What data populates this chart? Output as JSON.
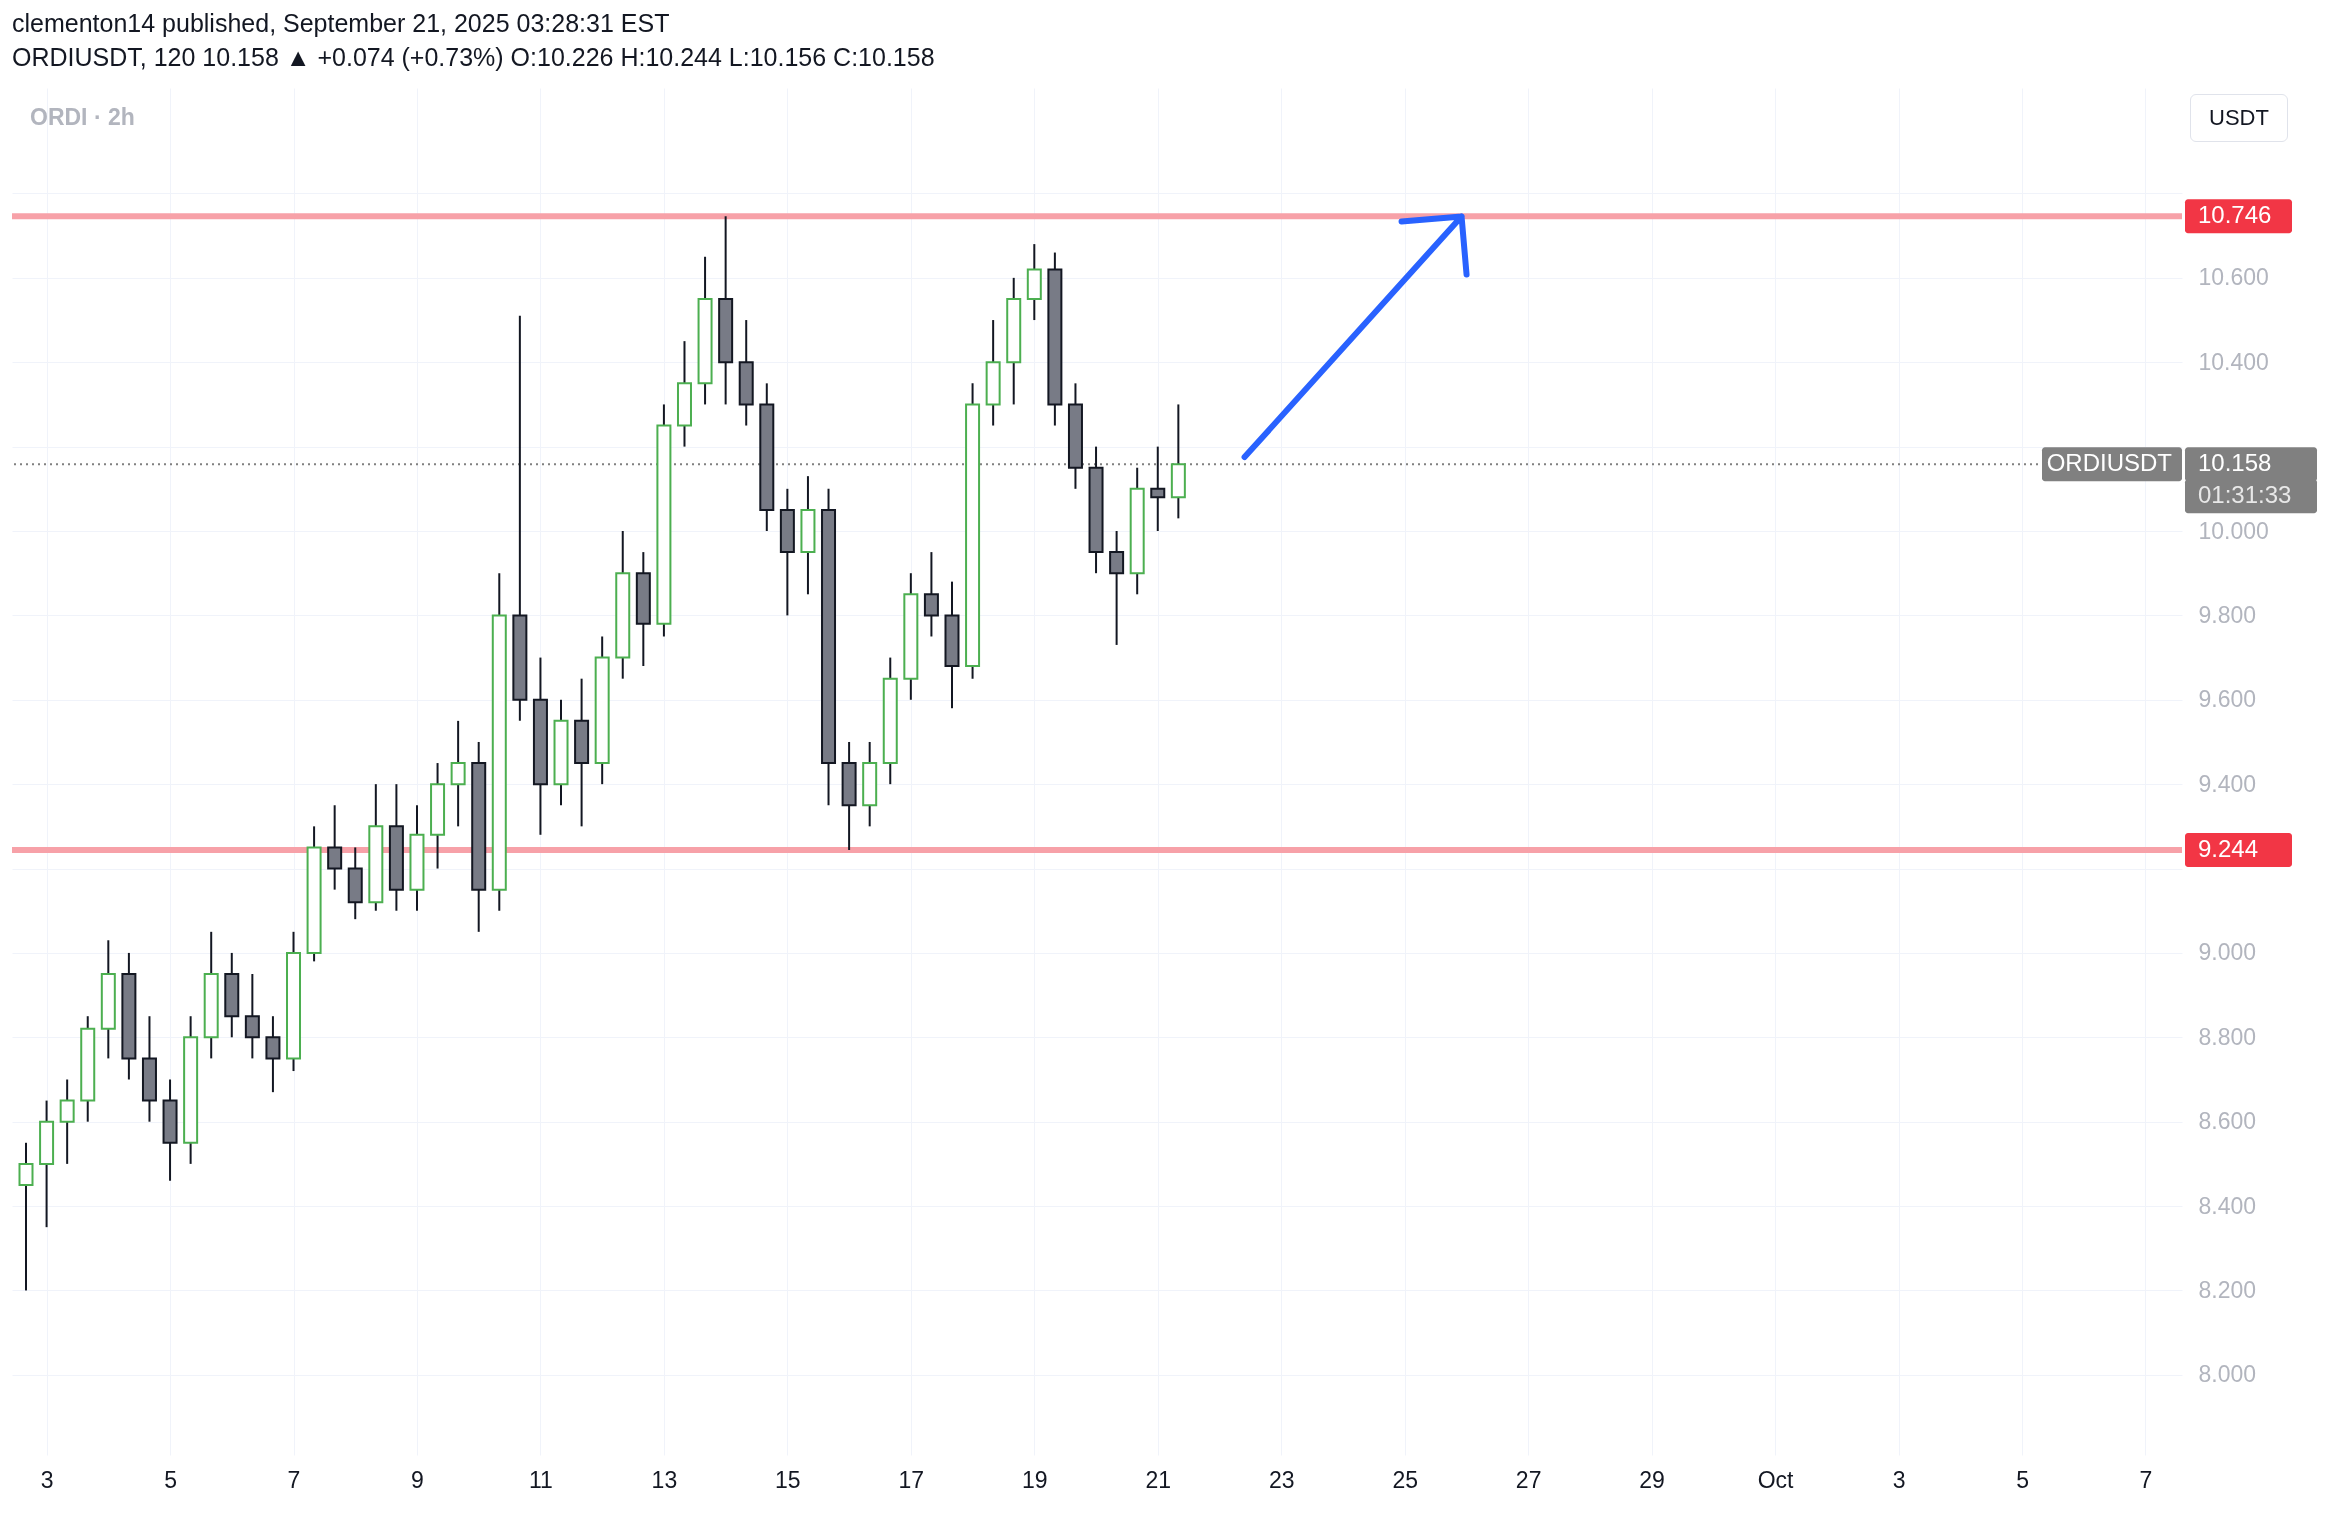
{
  "chart_data": {
    "type": "candlestick",
    "title": "ORDI · 2h",
    "annotations": [
      "clementon14 published, September 21, 2025 03:28:31 EST",
      "ORDIUSDT, 120  10.158 ▲ +0.074 (+0.73%) O:10.226 H:10.244 L:10.156 C:10.158",
      "USDT",
      "10.158",
      "01:31:33"
    ],
    "x": [
      "2025-09-02T16:00",
      "2025-09-03T00:00",
      "2025-09-03T08:00",
      "2025-09-03T16:00",
      "2025-09-04T00:00",
      "2025-09-04T08:00",
      "2025-09-04T16:00",
      "2025-09-05T00:00",
      "2025-09-05T08:00",
      "2025-09-05T16:00",
      "2025-09-06T00:00",
      "2025-09-06T08:00",
      "2025-09-06T16:00",
      "2025-09-07T00:00",
      "2025-09-07T08:00",
      "2025-09-07T16:00",
      "2025-09-08T00:00",
      "2025-09-08T08:00",
      "2025-09-08T16:00",
      "2025-09-09T00:00",
      "2025-09-09T08:00",
      "2025-09-09T16:00",
      "2025-09-10T00:00",
      "2025-09-10T08:00",
      "2025-09-10T16:00",
      "2025-09-11T00:00",
      "2025-09-11T08:00",
      "2025-09-11T16:00",
      "2025-09-12T00:00",
      "2025-09-12T08:00",
      "2025-09-12T16:00",
      "2025-09-13T00:00",
      "2025-09-13T08:00",
      "2025-09-13T16:00",
      "2025-09-14T00:00",
      "2025-09-14T08:00",
      "2025-09-14T16:00",
      "2025-09-15T00:00",
      "2025-09-15T08:00",
      "2025-09-15T16:00",
      "2025-09-16T00:00",
      "2025-09-16T08:00",
      "2025-09-16T16:00",
      "2025-09-17T00:00",
      "2025-09-17T08:00",
      "2025-09-17T16:00",
      "2025-09-18T00:00",
      "2025-09-18T08:00",
      "2025-09-18T16:00",
      "2025-09-19T00:00",
      "2025-09-19T08:00",
      "2025-09-19T16:00",
      "2025-09-20T00:00",
      "2025-09-20T08:00",
      "2025-09-20T16:00",
      "2025-09-21T00:00",
      "2025-09-21T08:00"
    ],
    "ohlc": [
      [
        8.45,
        8.55,
        8.2,
        8.5
      ],
      [
        8.5,
        8.65,
        8.35,
        8.6
      ],
      [
        8.6,
        8.7,
        8.5,
        8.65
      ],
      [
        8.65,
        8.85,
        8.6,
        8.82
      ],
      [
        8.82,
        9.03,
        8.75,
        8.95
      ],
      [
        8.95,
        9.0,
        8.7,
        8.75
      ],
      [
        8.75,
        8.85,
        8.6,
        8.65
      ],
      [
        8.65,
        8.7,
        8.46,
        8.55
      ],
      [
        8.55,
        8.85,
        8.5,
        8.8
      ],
      [
        8.8,
        9.05,
        8.75,
        8.95
      ],
      [
        8.95,
        9.0,
        8.8,
        8.85
      ],
      [
        8.85,
        8.95,
        8.75,
        8.8
      ],
      [
        8.8,
        8.85,
        8.67,
        8.75
      ],
      [
        8.75,
        9.05,
        8.72,
        9.0
      ],
      [
        9.0,
        9.3,
        8.98,
        9.25
      ],
      [
        9.25,
        9.35,
        9.15,
        9.2
      ],
      [
        9.2,
        9.25,
        9.08,
        9.12
      ],
      [
        9.12,
        9.4,
        9.1,
        9.3
      ],
      [
        9.3,
        9.4,
        9.1,
        9.15
      ],
      [
        9.15,
        9.35,
        9.1,
        9.28
      ],
      [
        9.28,
        9.45,
        9.2,
        9.4
      ],
      [
        9.4,
        9.55,
        9.3,
        9.45
      ],
      [
        9.45,
        9.5,
        9.05,
        9.15
      ],
      [
        9.15,
        9.9,
        9.1,
        9.8
      ],
      [
        9.8,
        10.51,
        9.55,
        9.6
      ],
      [
        9.6,
        9.7,
        9.28,
        9.4
      ],
      [
        9.4,
        9.6,
        9.35,
        9.55
      ],
      [
        9.55,
        9.65,
        9.3,
        9.45
      ],
      [
        9.45,
        9.75,
        9.4,
        9.7
      ],
      [
        9.7,
        10.0,
        9.65,
        9.9
      ],
      [
        9.9,
        9.95,
        9.68,
        9.78
      ],
      [
        9.78,
        10.3,
        9.75,
        10.25
      ],
      [
        10.25,
        10.45,
        10.2,
        10.35
      ],
      [
        10.35,
        10.65,
        10.3,
        10.55
      ],
      [
        10.55,
        10.746,
        10.3,
        10.4
      ],
      [
        10.4,
        10.5,
        10.25,
        10.3
      ],
      [
        10.3,
        10.35,
        10.0,
        10.05
      ],
      [
        10.05,
        10.1,
        9.8,
        9.95
      ],
      [
        9.95,
        10.13,
        9.85,
        10.05
      ],
      [
        10.05,
        10.1,
        9.35,
        9.45
      ],
      [
        9.45,
        9.5,
        9.244,
        9.35
      ],
      [
        9.35,
        9.5,
        9.3,
        9.45
      ],
      [
        9.45,
        9.7,
        9.4,
        9.65
      ],
      [
        9.65,
        9.9,
        9.6,
        9.85
      ],
      [
        9.85,
        9.95,
        9.75,
        9.8
      ],
      [
        9.8,
        9.88,
        9.58,
        9.68
      ],
      [
        9.68,
        10.35,
        9.65,
        10.3
      ],
      [
        10.3,
        10.5,
        10.25,
        10.4
      ],
      [
        10.4,
        10.6,
        10.3,
        10.55
      ],
      [
        10.55,
        10.68,
        10.5,
        10.62
      ],
      [
        10.62,
        10.66,
        10.25,
        10.3
      ],
      [
        10.3,
        10.35,
        10.1,
        10.15
      ],
      [
        10.15,
        10.2,
        9.9,
        9.95
      ],
      [
        9.95,
        10.0,
        9.73,
        9.9
      ],
      [
        9.9,
        10.15,
        9.85,
        10.1
      ],
      [
        10.1,
        10.2,
        10.0,
        10.08
      ],
      [
        10.08,
        10.3,
        10.03,
        10.158
      ]
    ],
    "xlim": [
      "2025-09-02T12:30",
      "2025-10-07T12:15"
    ],
    "xticks": [
      {
        "value": "2025-09-03",
        "label": "3"
      },
      {
        "value": "2025-09-05",
        "label": "5"
      },
      {
        "value": "2025-09-07",
        "label": "7"
      },
      {
        "value": "2025-09-09",
        "label": "9"
      },
      {
        "value": "2025-09-11",
        "label": "11"
      },
      {
        "value": "2025-09-13",
        "label": "13"
      },
      {
        "value": "2025-09-15",
        "label": "15"
      },
      {
        "value": "2025-09-17",
        "label": "17"
      },
      {
        "value": "2025-09-19",
        "label": "19"
      },
      {
        "value": "2025-09-21",
        "label": "21"
      },
      {
        "value": "2025-09-23",
        "label": "23"
      },
      {
        "value": "2025-09-25",
        "label": "25"
      },
      {
        "value": "2025-09-27",
        "label": "27"
      },
      {
        "value": "2025-09-29",
        "label": "29"
      },
      {
        "value": "2025-10-01",
        "label": "Oct"
      },
      {
        "value": "2025-10-03",
        "label": "3"
      },
      {
        "value": "2025-10-05",
        "label": "5"
      },
      {
        "value": "2025-10-07",
        "label": "7"
      }
    ],
    "ylim": [
      7.81,
      11.05
    ],
    "yticks": [
      {
        "value": 8,
        "label": "8.000"
      },
      {
        "value": 8.2,
        "label": "8.200"
      },
      {
        "value": 8.4,
        "label": "8.400"
      },
      {
        "value": 8.6,
        "label": "8.600"
      },
      {
        "value": 8.8,
        "label": "8.800"
      },
      {
        "value": 9,
        "label": "9.000"
      },
      {
        "value": 9.2,
        "label": null
      },
      {
        "value": 9.4,
        "label": "9.400"
      },
      {
        "value": 9.6,
        "label": "9.600"
      },
      {
        "value": 9.8,
        "label": "9.800"
      },
      {
        "value": 10,
        "label": "10.000"
      },
      {
        "value": 10.2,
        "label": null
      },
      {
        "value": 10.4,
        "label": "10.400"
      },
      {
        "value": 10.6,
        "label": "10.600"
      },
      {
        "value": 10.8,
        "label": null
      }
    ],
    "grid": true,
    "ref_lines": [
      {
        "axis": "y",
        "value": 10.746,
        "label": "10.746",
        "color": "#f7a1a8"
      },
      {
        "axis": "y",
        "value": 9.244,
        "label": "9.244",
        "color": "#f7a1a8"
      },
      {
        "axis": "y",
        "value": 10.158,
        "label": "ORDIUSDT",
        "color": "#808080",
        "line_style": "dotted"
      }
    ]
  }
}
